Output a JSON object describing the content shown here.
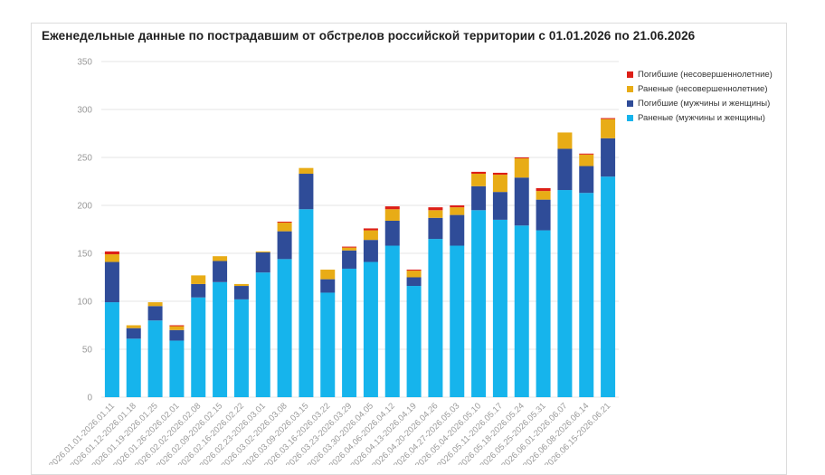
{
  "chart_data": {
    "type": "bar",
    "stacked": true,
    "title": "Еженедельные данные по пострадавшим от обстрелов российской территории с 01.01.2026 по 21.06.2026",
    "xlabel": "",
    "ylabel": "",
    "ylim": [
      0,
      350
    ],
    "yticks": [
      "0",
      "50",
      "100",
      "150",
      "200",
      "250",
      "300",
      "350"
    ],
    "grid": true,
    "legend_position": "top-right",
    "categories": [
      "2026.01.01-2026.01.11",
      "2026.01.12-2026.01.18",
      "2026.01.19-2026.01.25",
      "2026.01.26-2026.02.01",
      "2026.02.02-2026.02.08",
      "2026.02.09-2026.02.15",
      "2026.02.16-2026.02.22",
      "2026.02.23-2026.03.01",
      "2026.03.02-2026.03.08",
      "2026.03.09-2026.03.15",
      "2026.03.16-2026.03.22",
      "2026.03.23-2026.03.29",
      "2026.03.30-2026.04.05",
      "2026.04.06-2026.04.12",
      "2026.04.13-2026.04.19",
      "2026.04.20-2026.04.26",
      "2026.04.27-2026.05.03",
      "2026.05.04-2026.05.10",
      "2026.05.11-2026.05.17",
      "2026.05.18-2026.05.24",
      "2026.05.25-2026.05.31",
      "2026.06.01-2026.06.07",
      "2026.06.08-2026.06.14",
      "2026.06.15-2026.06.21"
    ],
    "series": [
      {
        "name": "Раненые (мужчины и женщины)",
        "color": "#16b4ec",
        "values": [
          99,
          61,
          80,
          59,
          104,
          120,
          102,
          130,
          144,
          196,
          109,
          134,
          141,
          158,
          116,
          165,
          158,
          195,
          185,
          179,
          174,
          216,
          213,
          230
        ]
      },
      {
        "name": "Погибшие (мужчины и женщины)",
        "color": "#2f4c98",
        "values": [
          42,
          11,
          15,
          11,
          14,
          22,
          14,
          21,
          29,
          37,
          14,
          19,
          23,
          26,
          9,
          22,
          32,
          25,
          29,
          50,
          32,
          43,
          28,
          40
        ]
      },
      {
        "name": "Раненые (несовершеннолетние)",
        "color": "#e8ac16",
        "values": [
          8,
          3,
          4,
          4,
          9,
          5,
          2,
          1,
          9,
          6,
          10,
          3,
          10,
          12,
          7,
          8,
          8,
          13,
          18,
          20,
          9,
          17,
          12,
          20
        ]
      },
      {
        "name": "Погибшие (несовершеннолетние)",
        "color": "#dd1f17",
        "values": [
          3,
          0,
          0,
          1,
          0,
          0,
          0,
          0,
          1,
          0,
          0,
          1,
          2,
          3,
          1,
          3,
          2,
          2,
          2,
          1,
          3,
          0,
          1,
          1
        ]
      }
    ]
  }
}
